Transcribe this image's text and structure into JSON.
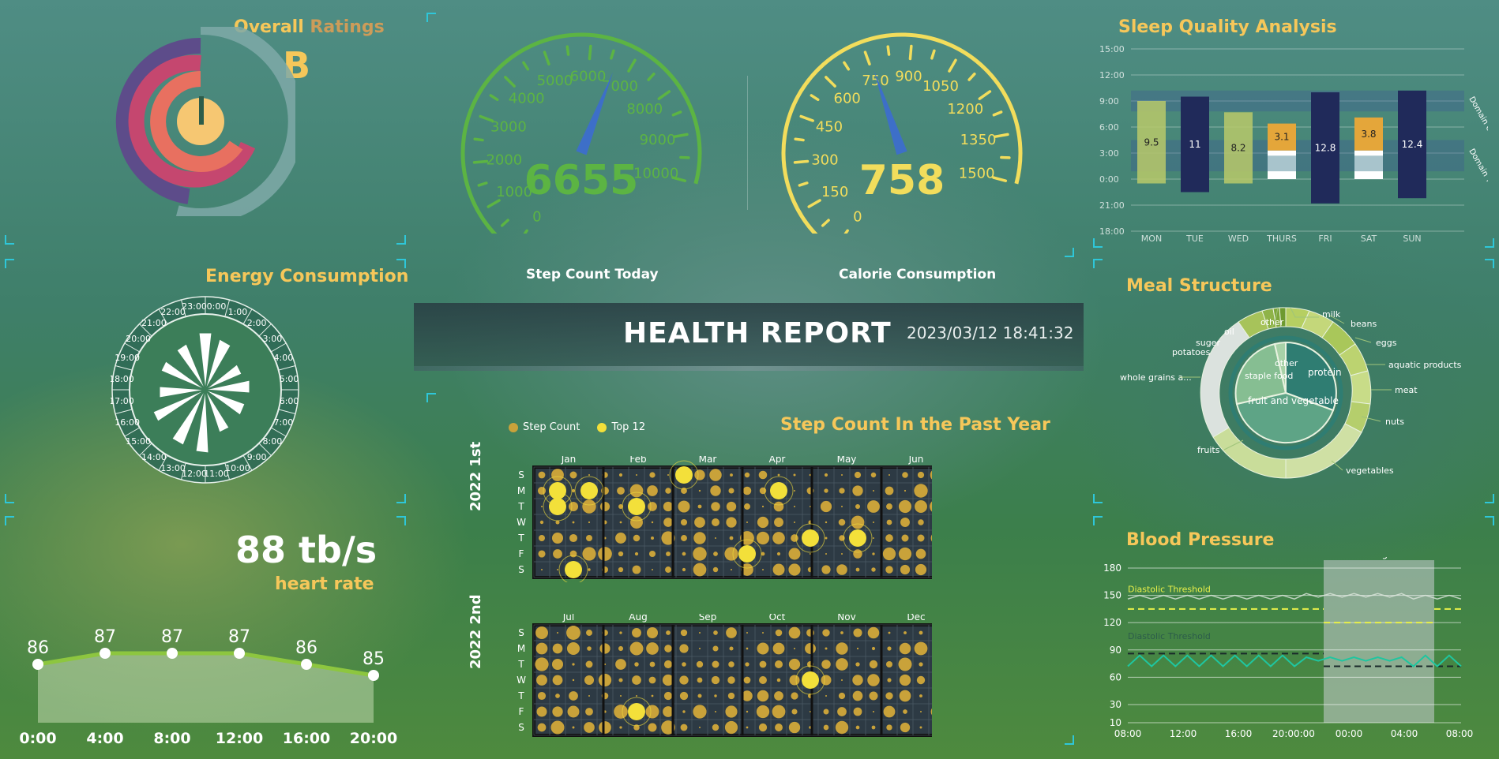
{
  "header": {
    "title": "HEALTH REPORT",
    "datetime": "2023/03/12 18:41:32"
  },
  "ratings": {
    "title_main": "Overall",
    "title_accent": "Ratings",
    "grade": "B"
  },
  "energy": {
    "title": "Energy Consumption",
    "hours": [
      "0:00",
      "1:00",
      "2:00",
      "3:00",
      "4:00",
      "5:00",
      "6:00",
      "7:00",
      "8:00",
      "9:00",
      "10:00",
      "11:00",
      "12:00",
      "13:00",
      "14:00",
      "15:00",
      "16:00",
      "17:00",
      "18:00",
      "19:00",
      "20:00",
      "21:00",
      "22:00",
      "23:00"
    ]
  },
  "heart": {
    "value": "88 tb/s",
    "label": "heart rate",
    "chart_data": {
      "type": "area",
      "x": [
        "0:00",
        "4:00",
        "8:00",
        "12:00",
        "16:00",
        "20:00"
      ],
      "values": [
        86,
        87,
        87,
        87,
        86,
        85
      ]
    }
  },
  "steps_gauge": {
    "value": "6655",
    "label": "Step Count Today",
    "min": 0,
    "max": 10000,
    "reading": 6655,
    "ticks": [
      "0",
      "1000",
      "2000",
      "3000",
      "4000",
      "5000",
      "6000",
      "7000",
      "8000",
      "9000",
      "10000"
    ],
    "color": "#5cb443"
  },
  "calorie_gauge": {
    "value": "758",
    "label": "Calorie Consumption",
    "min": 0,
    "max": 1500,
    "reading": 758,
    "ticks": [
      "0",
      "150",
      "300",
      "450",
      "600",
      "750",
      "900",
      "1050",
      "1200",
      "1350",
      "1500"
    ],
    "color": "#f2dd5c"
  },
  "step_year": {
    "title": "Step Count In the Past Year",
    "legend": [
      "Step Count",
      "Top 12"
    ],
    "half1_label": "2022 1st",
    "half2_label": "2022 2nd",
    "months_h1": [
      "Jan",
      "Feb",
      "Mar",
      "Apr",
      "May",
      "Jun"
    ],
    "months_h2": [
      "Jul",
      "Aug",
      "Sep",
      "Oct",
      "Nov",
      "Dec"
    ],
    "days": [
      "S",
      "M",
      "T",
      "W",
      "T",
      "F",
      "S"
    ]
  },
  "sleep": {
    "title": "Sleep Quality Analysis",
    "y_ticks": [
      "15:00",
      "12:00",
      "9:00",
      "6:00",
      "3:00",
      "0:00",
      "21:00",
      "18:00"
    ],
    "domain_labels": [
      "Domain One",
      "Domain Two"
    ],
    "chart_data": {
      "type": "bar",
      "categories": [
        "MON",
        "TUE",
        "WED",
        "THURS",
        "FRI",
        "SAT",
        "SUN"
      ],
      "values": [
        9.5,
        11,
        8.2,
        3.1,
        12.8,
        3.8,
        12.4
      ]
    }
  },
  "meal": {
    "title": "Meal Structure",
    "outer": [
      "milk",
      "beans",
      "eggs",
      "aquatic products",
      "meat",
      "nuts",
      "vegetables",
      "fruits",
      "whole grains a...",
      "potatoes",
      "suger",
      "oil",
      "other"
    ],
    "inner": [
      "protein",
      "fruit and vegetable",
      "staple food",
      "other"
    ]
  },
  "bp": {
    "title": "Blood Pressure",
    "night_label": "at night",
    "threshold_top": "Diastolic Threshold",
    "threshold_bottom": "Diastolic Threshold",
    "y_ticks": [
      "180",
      "150",
      "120",
      "90",
      "60",
      "30",
      "10"
    ],
    "x_ticks": [
      "08:00",
      "12:00",
      "16:00",
      "20:00:00",
      "00:00",
      "04:00",
      "08:00"
    ]
  }
}
